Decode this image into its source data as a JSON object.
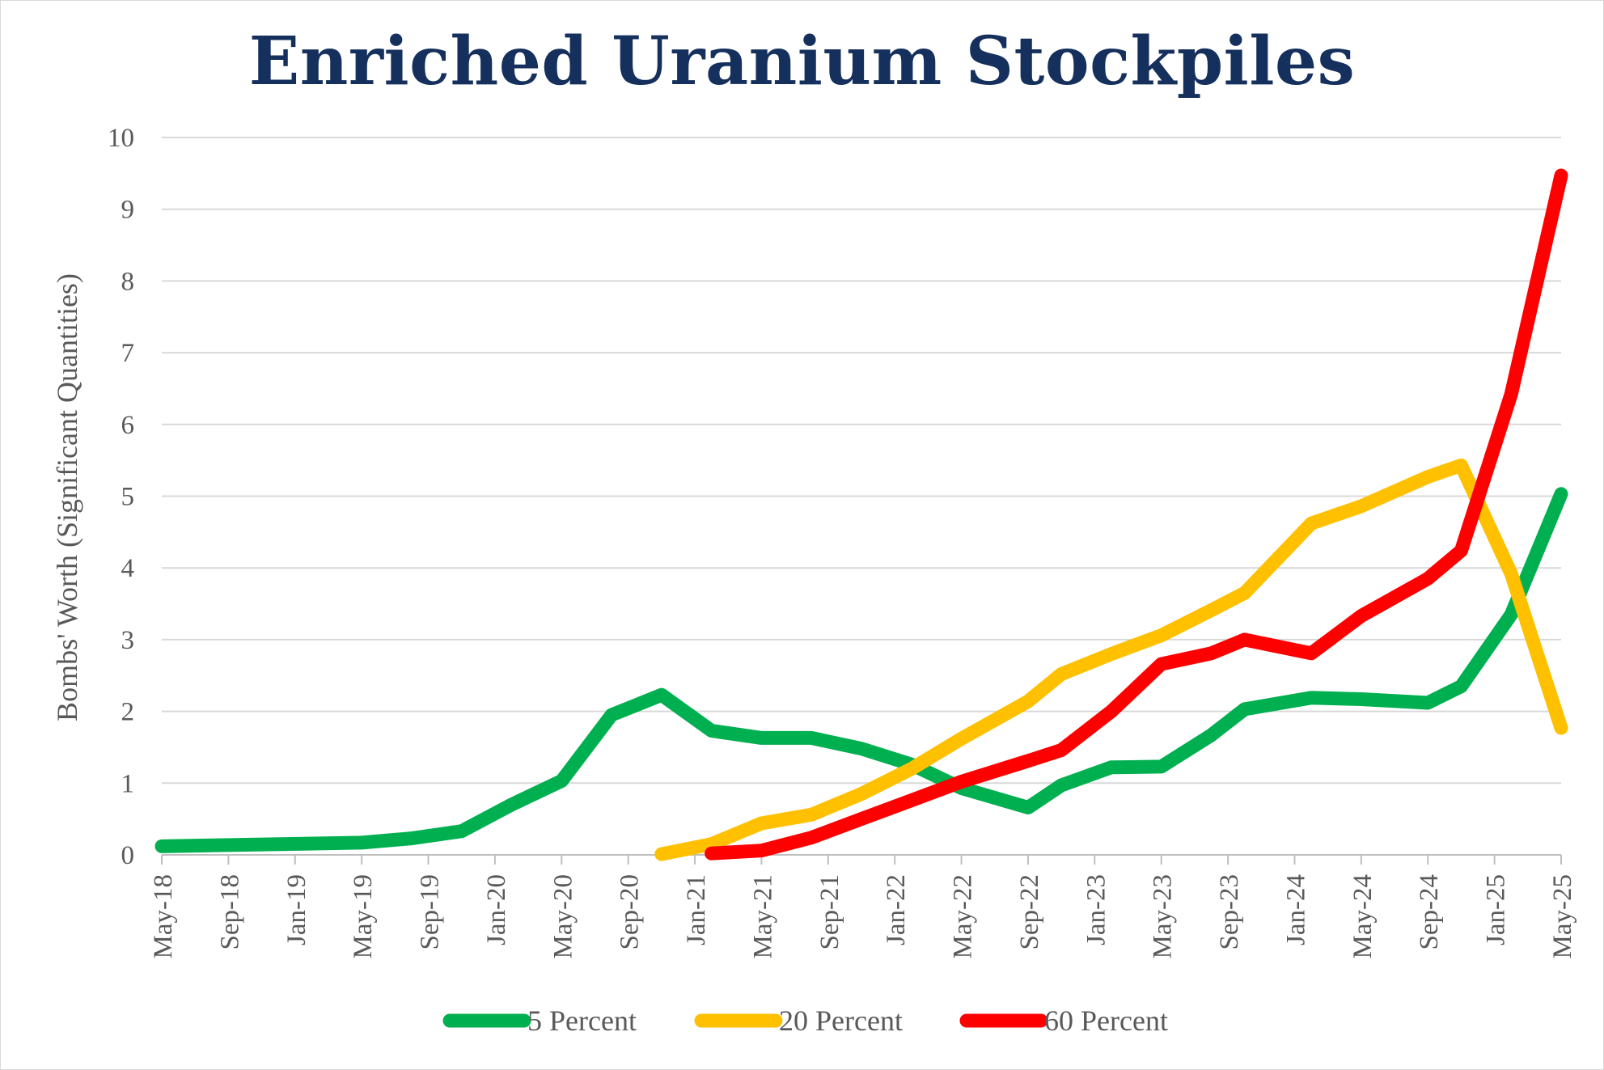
{
  "chart_data": {
    "type": "line",
    "title": "Enriched Uranium Stockpiles",
    "ylabel": "Bombs' Worth (Significant Quantities)",
    "xlabel": "",
    "ylim": [
      0,
      10
    ],
    "yticks": [
      "0",
      "1",
      "2",
      "3",
      "4",
      "5",
      "6",
      "7",
      "8",
      "9",
      "10"
    ],
    "xlim": [
      "2018-05",
      "2025-05"
    ],
    "xticks": [
      "May-18",
      "Sep-18",
      "Jan-19",
      "May-19",
      "Sep-19",
      "Jan-20",
      "May-20",
      "Sep-20",
      "Jan-21",
      "May-21",
      "Sep-21",
      "Jan-22",
      "May-22",
      "Sep-22",
      "Jan-23",
      "May-23",
      "Sep-23",
      "Jan-24",
      "May-24",
      "Sep-24",
      "Jan-25",
      "May-25"
    ],
    "grid": true,
    "legend_position": "bottom",
    "series": [
      {
        "name": "5 Percent",
        "color": "#00b050",
        "points": [
          [
            "2018-05",
            0.12
          ],
          [
            "2019-05",
            0.17
          ],
          [
            "2019-08",
            0.23
          ],
          [
            "2019-11",
            0.33
          ],
          [
            "2020-02",
            0.7
          ],
          [
            "2020-05",
            1.03
          ],
          [
            "2020-08",
            1.95
          ],
          [
            "2020-11",
            2.23
          ],
          [
            "2021-02",
            1.73
          ],
          [
            "2021-05",
            1.63
          ],
          [
            "2021-08",
            1.63
          ],
          [
            "2021-11",
            1.48
          ],
          [
            "2022-02",
            1.26
          ],
          [
            "2022-05",
            0.93
          ],
          [
            "2022-09",
            0.66
          ],
          [
            "2022-11",
            0.97
          ],
          [
            "2023-02",
            1.22
          ],
          [
            "2023-05",
            1.23
          ],
          [
            "2023-08",
            1.67
          ],
          [
            "2023-10",
            2.03
          ],
          [
            "2024-02",
            2.19
          ],
          [
            "2024-05",
            2.17
          ],
          [
            "2024-09",
            2.12
          ],
          [
            "2024-11",
            2.35
          ],
          [
            "2025-02",
            3.35
          ],
          [
            "2025-05",
            5.03
          ]
        ]
      },
      {
        "name": "20 Percent",
        "color": "#ffc000",
        "points": [
          [
            "2020-11",
            0.01
          ],
          [
            "2021-02",
            0.15
          ],
          [
            "2021-05",
            0.44
          ],
          [
            "2021-08",
            0.56
          ],
          [
            "2021-11",
            0.85
          ],
          [
            "2022-02",
            1.2
          ],
          [
            "2022-05",
            1.62
          ],
          [
            "2022-09",
            2.14
          ],
          [
            "2022-11",
            2.52
          ],
          [
            "2023-02",
            2.8
          ],
          [
            "2023-05",
            3.06
          ],
          [
            "2023-08",
            3.41
          ],
          [
            "2023-10",
            3.65
          ],
          [
            "2024-02",
            4.62
          ],
          [
            "2024-05",
            4.86
          ],
          [
            "2024-09",
            5.27
          ],
          [
            "2024-11",
            5.43
          ],
          [
            "2025-02",
            3.92
          ],
          [
            "2025-05",
            1.77
          ]
        ]
      },
      {
        "name": "60 Percent",
        "color": "#ff0000",
        "points": [
          [
            "2021-02",
            0.02
          ],
          [
            "2021-05",
            0.06
          ],
          [
            "2021-08",
            0.24
          ],
          [
            "2021-11",
            0.5
          ],
          [
            "2022-02",
            0.76
          ],
          [
            "2022-05",
            1.02
          ],
          [
            "2022-09",
            1.31
          ],
          [
            "2022-11",
            1.46
          ],
          [
            "2023-02",
            2.0
          ],
          [
            "2023-05",
            2.66
          ],
          [
            "2023-08",
            2.81
          ],
          [
            "2023-10",
            3.0
          ],
          [
            "2024-02",
            2.81
          ],
          [
            "2024-05",
            3.33
          ],
          [
            "2024-09",
            3.85
          ],
          [
            "2024-11",
            4.24
          ],
          [
            "2025-02",
            6.42
          ],
          [
            "2025-05",
            9.47
          ]
        ]
      }
    ]
  }
}
